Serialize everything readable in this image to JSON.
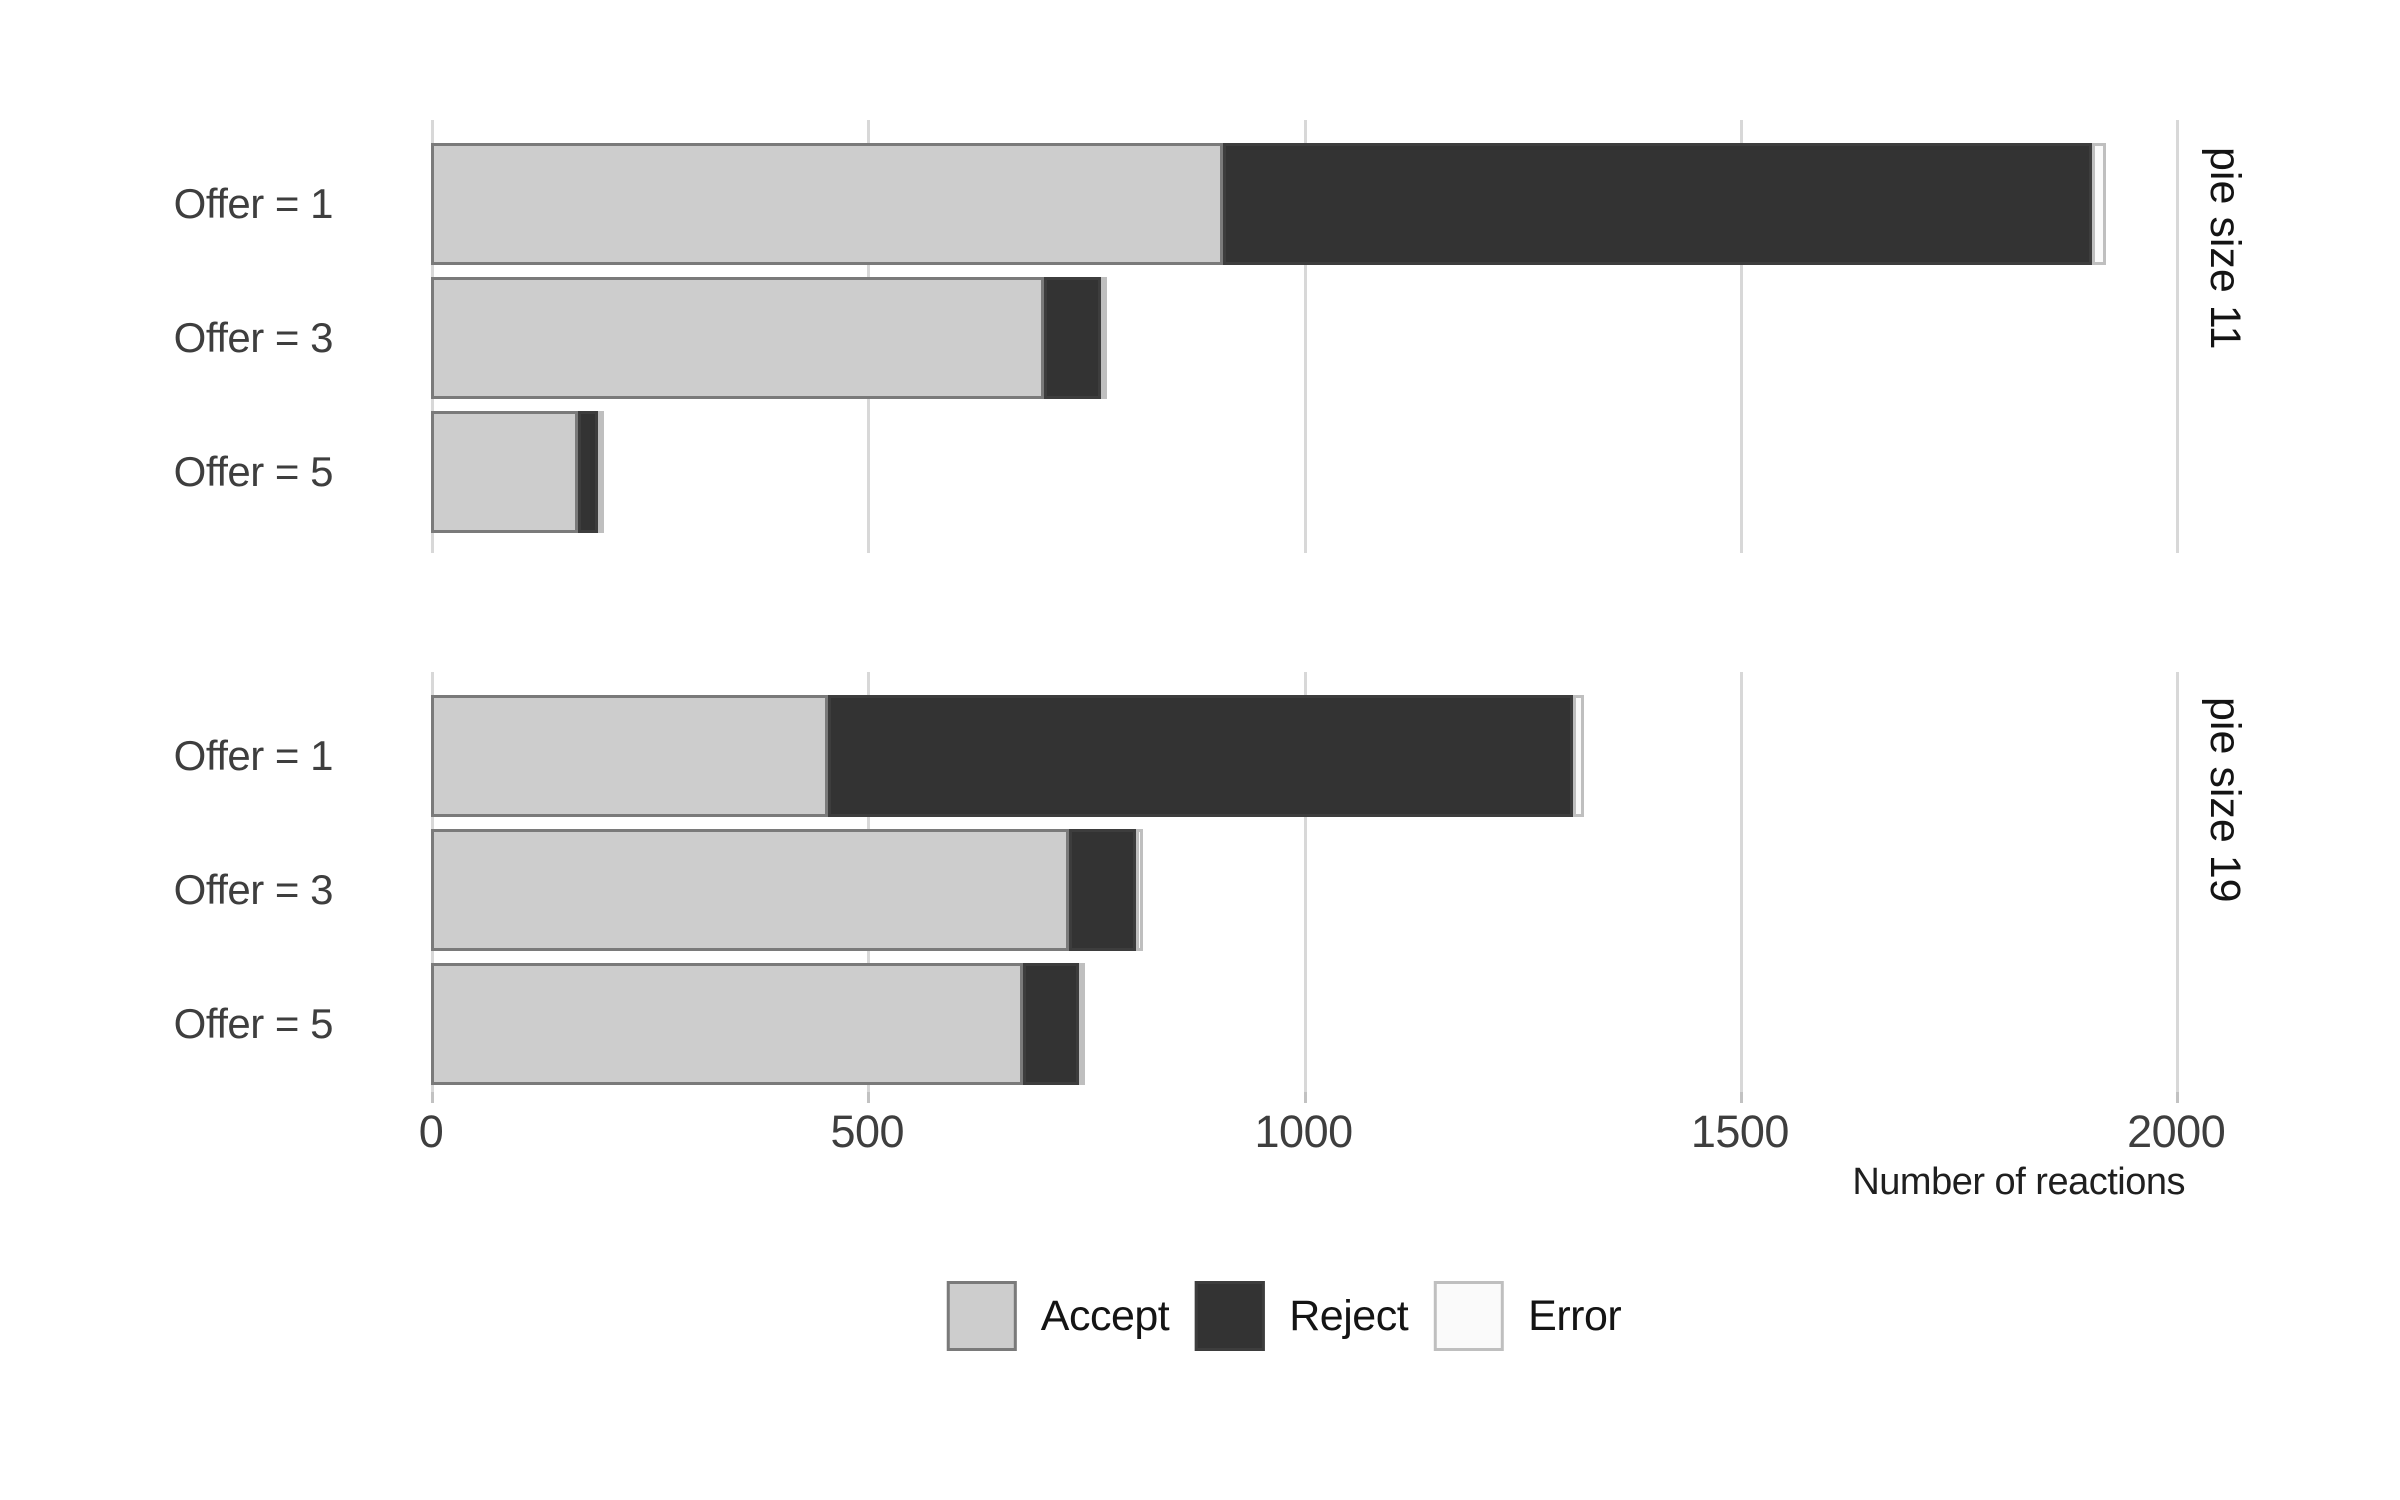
{
  "chart_data": {
    "type": "bar",
    "orientation": "horizontal",
    "stacked": true,
    "title": "",
    "xlabel": "Number of reactions",
    "xlim": [
      0,
      2050
    ],
    "x_ticks": [
      0,
      500,
      1000,
      1500,
      2000
    ],
    "grid": "vertical-major-only",
    "legend_position": "bottom",
    "facets": [
      {
        "strip_label": "pie size 11",
        "categories": [
          "Offer = 1",
          "Offer = 3",
          "Offer = 5"
        ],
        "series": [
          {
            "name": "Accept",
            "values": [
              908,
              703,
              168
            ]
          },
          {
            "name": "Reject",
            "values": [
              995,
              65,
              23
            ]
          },
          {
            "name": "Error",
            "values": [
              16,
              3,
              2
            ]
          }
        ]
      },
      {
        "strip_label": "pie size 19",
        "categories": [
          "Offer = 1",
          "Offer = 3",
          "Offer = 5"
        ],
        "series": [
          {
            "name": "Accept",
            "values": [
              455,
              731,
              679
            ]
          },
          {
            "name": "Reject",
            "values": [
              854,
              77,
              64
            ]
          },
          {
            "name": "Error",
            "values": [
              12,
              8,
              3
            ]
          }
        ]
      }
    ]
  },
  "legend": {
    "items": [
      {
        "label": "Accept",
        "key": "accept"
      },
      {
        "label": "Reject",
        "key": "reject"
      },
      {
        "label": "Error",
        "key": "error"
      }
    ]
  },
  "colors": {
    "accept_fill": "#cdcdcd",
    "accept_stroke": "#7a7a7a",
    "reject_fill": "#333333",
    "reject_stroke": "#3d3d3d",
    "error_fill": "#fafafa",
    "error_stroke": "#bfbfbf",
    "gridline": "#d8d8d8",
    "tick": "#c2c2c2",
    "text": "#3e3e3e"
  }
}
